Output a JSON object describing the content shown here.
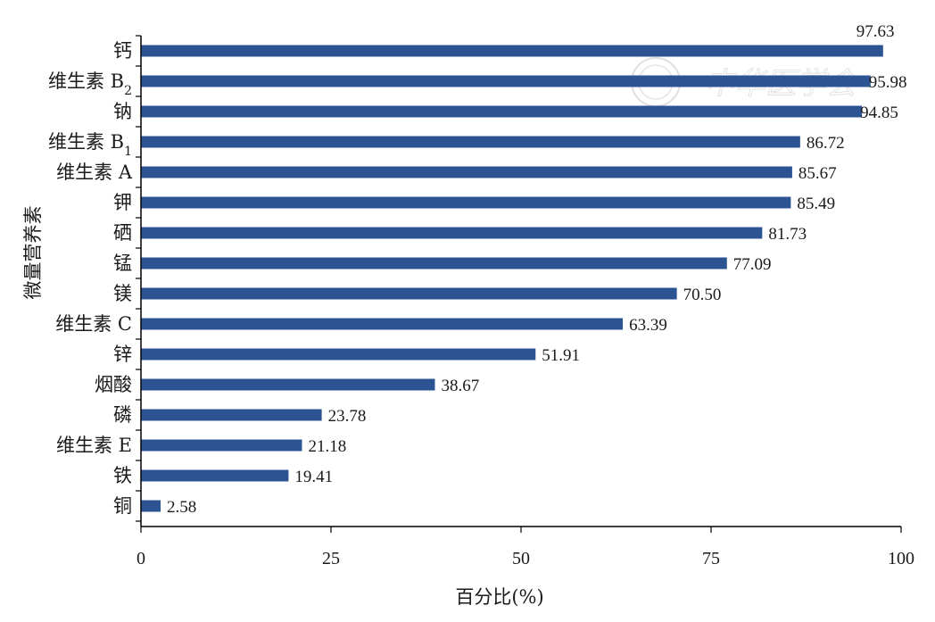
{
  "chart_data": {
    "type": "bar",
    "orientation": "horizontal",
    "categories": [
      {
        "label": "钙",
        "sub": ""
      },
      {
        "label": "维生素 B",
        "sub": "2"
      },
      {
        "label": "钠",
        "sub": ""
      },
      {
        "label": "维生素 B",
        "sub": "1"
      },
      {
        "label": "维生素 A",
        "sub": ""
      },
      {
        "label": "钾",
        "sub": ""
      },
      {
        "label": "硒",
        "sub": ""
      },
      {
        "label": "锰",
        "sub": ""
      },
      {
        "label": "镁",
        "sub": ""
      },
      {
        "label": "维生素 C",
        "sub": ""
      },
      {
        "label": "锌",
        "sub": ""
      },
      {
        "label": "烟酸",
        "sub": ""
      },
      {
        "label": "磷",
        "sub": ""
      },
      {
        "label": "维生素 E",
        "sub": ""
      },
      {
        "label": "铁",
        "sub": ""
      },
      {
        "label": "铜",
        "sub": ""
      }
    ],
    "values": [
      97.63,
      95.98,
      94.85,
      86.72,
      85.67,
      85.49,
      81.73,
      77.09,
      70.5,
      63.39,
      51.91,
      38.67,
      23.78,
      21.18,
      19.41,
      2.58
    ],
    "value_labels": [
      "97.63",
      "95.98",
      "94.85",
      "86.72",
      "85.67",
      "85.49",
      "81.73",
      "77.09",
      "70.50",
      "63.39",
      "51.91",
      "38.67",
      "23.78",
      "21.18",
      "19.41",
      "2.58"
    ],
    "xlabel": "百分比(%)",
    "ylabel": "微量营养素",
    "xlim": [
      0,
      100
    ],
    "xticks": [
      0,
      25,
      50,
      75,
      100
    ],
    "grid": false,
    "bar_color": "#2d5492",
    "watermark": "中华医学会"
  }
}
